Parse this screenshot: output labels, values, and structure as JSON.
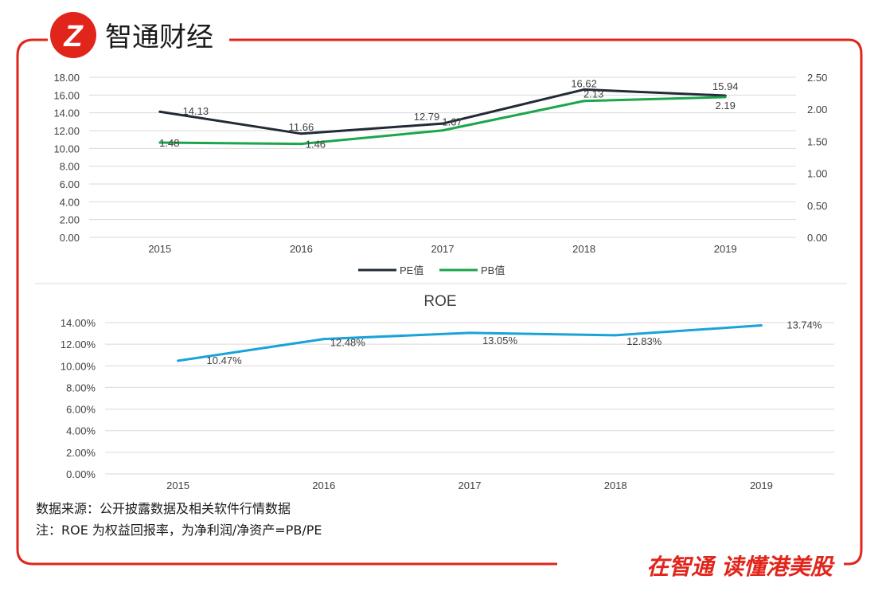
{
  "brand": {
    "logo_glyph": "Z",
    "name": "智通财经",
    "slogan": "在智通  读懂港美股",
    "color": "#e1251b"
  },
  "notes": {
    "source": "数据来源：公开披露数据及相关软件行情数据",
    "formula": "注：ROE 为权益回报率，为净利润/净资产=PB/PE"
  },
  "chart_data": [
    {
      "type": "line",
      "title": "",
      "categories": [
        "2015",
        "2016",
        "2017",
        "2018",
        "2019"
      ],
      "series": [
        {
          "name": "PE值",
          "axis": "left",
          "color": "#222a35",
          "values": [
            14.13,
            11.66,
            12.79,
            16.62,
            15.94
          ],
          "labels": [
            "14.13",
            "11.66",
            "12.79",
            "16.62",
            "15.94"
          ]
        },
        {
          "name": "PB值",
          "axis": "right",
          "color": "#1aa64a",
          "values": [
            1.48,
            1.46,
            1.67,
            2.13,
            2.19
          ],
          "labels": [
            "1.48",
            "1.46",
            "1.67",
            "2.13",
            "2.19"
          ]
        }
      ],
      "y_left": {
        "min": 0,
        "max": 18,
        "step": 2,
        "ticks": [
          "0.00",
          "2.00",
          "4.00",
          "6.00",
          "8.00",
          "10.00",
          "12.00",
          "14.00",
          "16.00",
          "18.00"
        ]
      },
      "y_right": {
        "min": 0,
        "max": 2.5,
        "step": 0.5,
        "ticks": [
          "0.00",
          "0.50",
          "1.00",
          "1.50",
          "2.00",
          "2.50"
        ]
      },
      "grid": true,
      "legend": "bottom"
    },
    {
      "type": "line",
      "title": "ROE",
      "categories": [
        "2015",
        "2016",
        "2017",
        "2018",
        "2019"
      ],
      "series": [
        {
          "name": "",
          "color": "#1aa3d9",
          "values": [
            10.47,
            12.48,
            13.05,
            12.83,
            13.74
          ],
          "labels": [
            "10.47%",
            "12.48%",
            "13.05%",
            "12.83%",
            "13.74%"
          ]
        }
      ],
      "y_left": {
        "min": 0,
        "max": 14,
        "step": 2,
        "ticks": [
          "0.00%",
          "2.00%",
          "4.00%",
          "6.00%",
          "8.00%",
          "10.00%",
          "12.00%",
          "14.00%"
        ]
      },
      "grid": true,
      "legend": "none"
    }
  ]
}
